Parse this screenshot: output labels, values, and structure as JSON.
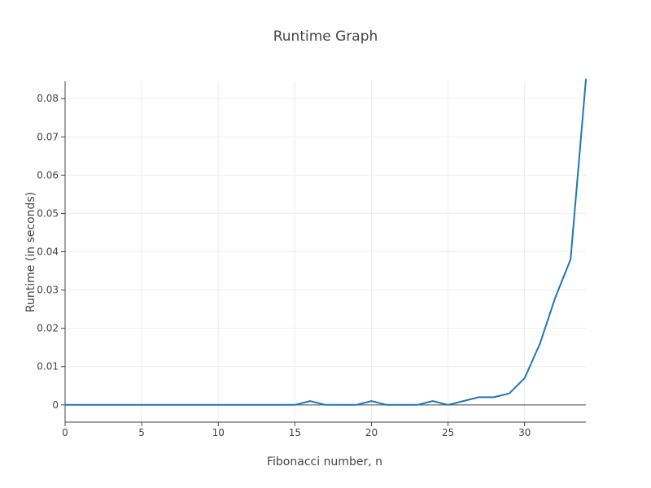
{
  "chart_data": {
    "type": "line",
    "title": "Runtime Graph",
    "xlabel": "Fibonacci number, n",
    "ylabel": "Runtime (in seconds)",
    "xlim": [
      0,
      34
    ],
    "ylim": [
      -0.0045,
      0.0845
    ],
    "xticks": [
      0,
      5,
      10,
      15,
      20,
      25,
      30
    ],
    "yticks": [
      0,
      0.01,
      0.02,
      0.03,
      0.04,
      0.05,
      0.06,
      0.07,
      0.08
    ],
    "grid": true,
    "series_color": "#1f77b4",
    "series": [
      {
        "x": [
          0,
          1,
          2,
          3,
          4,
          5,
          6,
          7,
          8,
          9,
          10,
          11,
          12,
          13,
          14,
          15,
          16,
          17,
          18,
          19,
          20,
          21,
          22,
          23,
          24,
          25,
          26,
          27,
          28,
          29,
          30,
          31,
          32,
          33,
          34
        ],
        "y": [
          0,
          0,
          0,
          0,
          0,
          0,
          0,
          0,
          0,
          0,
          0,
          0,
          0,
          0,
          0,
          0,
          0.001,
          0,
          0,
          0,
          0.001,
          0,
          0,
          0,
          0.001,
          0,
          0.001,
          0.002,
          0.002,
          0.003,
          0.007,
          0.016,
          0.028,
          0.038,
          0.085
        ]
      }
    ]
  }
}
